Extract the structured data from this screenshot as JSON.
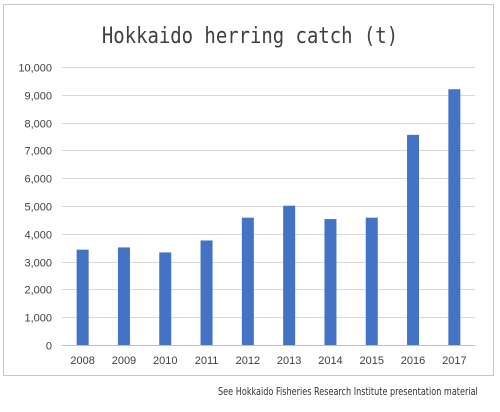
{
  "chart_data": {
    "type": "bar",
    "title": "Hokkaido herring catch (t)",
    "categories": [
      "2008",
      "2009",
      "2010",
      "2011",
      "2012",
      "2013",
      "2014",
      "2015",
      "2016",
      "2017"
    ],
    "values": [
      3430,
      3510,
      3330,
      3760,
      4580,
      5010,
      4530,
      4580,
      7560,
      9200
    ],
    "ylim": [
      0,
      10000
    ],
    "yticks": [
      "0",
      "1,000",
      "2,000",
      "3,000",
      "4,000",
      "5,000",
      "6,000",
      "7,000",
      "8,000",
      "9,000",
      "10,000"
    ],
    "xlabel": "",
    "ylabel": "",
    "grid": true,
    "legend": "none",
    "colors": {
      "bar": "#4472c4",
      "grid": "#d9d9d9",
      "axis": "#bfbfbf"
    }
  },
  "source_note": "See Hokkaido Fisheries Research Institute presentation material"
}
